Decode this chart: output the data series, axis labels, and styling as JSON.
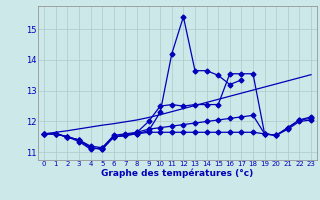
{
  "xlabel": "Graphe des températures (°c)",
  "bg_color": "#cce8e8",
  "grid_color": "#aacccc",
  "line_color": "#0000bb",
  "hours": [
    0,
    1,
    2,
    3,
    4,
    5,
    6,
    7,
    8,
    9,
    10,
    11,
    12,
    13,
    14,
    15,
    16,
    17,
    18,
    19,
    20,
    21,
    22,
    23
  ],
  "curve_peak11": [
    11.6,
    11.6,
    11.5,
    11.4,
    11.15,
    11.1,
    11.5,
    11.55,
    11.6,
    11.7,
    12.3,
    14.2,
    15.4,
    13.65,
    13.65,
    13.5,
    13.2,
    13.35,
    null,
    null,
    null,
    null,
    null,
    null
  ],
  "curve_peak12": [
    null,
    null,
    null,
    null,
    null,
    null,
    null,
    null,
    null,
    null,
    null,
    null,
    15.4,
    null,
    null,
    null,
    null,
    null,
    null,
    null,
    null,
    null,
    null,
    null
  ],
  "curve_flat_low": [
    11.6,
    11.6,
    11.5,
    11.35,
    11.1,
    11.15,
    11.5,
    11.55,
    11.6,
    11.65,
    11.65,
    11.65,
    11.65,
    11.65,
    11.65,
    11.65,
    11.65,
    11.65,
    11.65,
    11.6,
    11.55,
    11.75,
    12.0,
    12.05
  ],
  "curve_flat_high": [
    11.6,
    11.6,
    11.5,
    11.4,
    11.15,
    11.1,
    11.5,
    11.55,
    11.65,
    11.75,
    11.8,
    11.85,
    11.9,
    11.95,
    12.0,
    12.05,
    12.1,
    12.15,
    12.2,
    11.6,
    11.55,
    11.8,
    12.05,
    12.15
  ],
  "curve_upper": [
    11.6,
    11.6,
    11.5,
    11.4,
    11.2,
    11.15,
    11.55,
    11.6,
    11.65,
    12.0,
    12.5,
    12.55,
    12.5,
    12.55,
    12.55,
    12.55,
    13.55,
    13.55,
    13.55,
    11.6,
    11.55,
    11.8,
    12.05,
    12.1
  ],
  "trend": [
    11.6,
    11.65,
    11.7,
    11.76,
    11.82,
    11.88,
    11.93,
    11.99,
    12.05,
    12.13,
    12.22,
    12.32,
    12.42,
    12.52,
    12.62,
    12.72,
    12.82,
    12.92,
    13.02,
    13.12,
    13.22,
    13.32,
    13.42,
    13.52
  ],
  "ylim": [
    10.75,
    15.75
  ],
  "yticks": [
    11,
    12,
    13,
    14,
    15
  ],
  "xlim": [
    -0.5,
    23.5
  ]
}
